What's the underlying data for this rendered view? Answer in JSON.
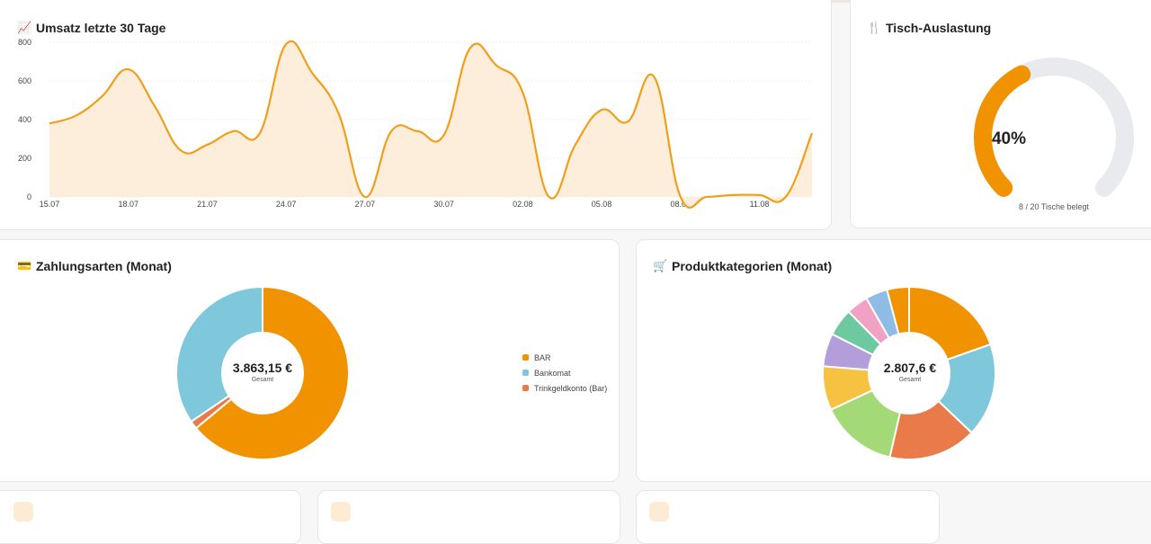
{
  "revenue_card": {
    "title": "Umsatz letzte 30 Tage",
    "icon": "chart-line-icon"
  },
  "occupancy_card": {
    "title": "Tisch-Auslastung",
    "icon": "fork-knife-icon",
    "percent_label": "40%",
    "percent": 0.4,
    "sub_label": "8 / 20 Tische belegt",
    "color_fill": "#f19200",
    "color_track": "#e8eaed"
  },
  "payments_card": {
    "title": "Zahlungsarten (Monat)",
    "icon": "credit-card-icon",
    "center_value": "3.863,15 €",
    "center_sub": "Gesamt",
    "legend": [
      {
        "label": "BAR",
        "color": "#f19200"
      },
      {
        "label": "Bankomat",
        "color": "#7fc8dc"
      },
      {
        "label": "Trinkgeldkonto (Bar)",
        "color": "#e97b4a"
      }
    ]
  },
  "categories_card": {
    "title": "Produktkategorien (Monat)",
    "icon": "shopping-cart-icon",
    "center_value": "2.807,6 €",
    "center_sub": "Gesamt"
  },
  "chart_data": [
    {
      "type": "area",
      "title": "Umsatz letzte 30 Tage",
      "x_tick_labels": [
        "15.07",
        "18.07",
        "21.07",
        "24.07",
        "27.07",
        "30.07",
        "02.08",
        "05.08",
        "08.08",
        "11.08"
      ],
      "y_tick_labels": [
        "0",
        "200",
        "400",
        "600",
        "800"
      ],
      "ylim": [
        0,
        800
      ],
      "grid": true,
      "values": [
        380,
        420,
        520,
        660,
        470,
        240,
        270,
        340,
        330,
        790,
        640,
        430,
        0,
        340,
        340,
        320,
        770,
        680,
        540,
        0,
        270,
        450,
        390,
        620,
        0,
        0,
        10,
        10,
        0,
        330
      ],
      "color": "#f19e1a",
      "fill": "#fdeedb"
    },
    {
      "type": "pie",
      "title": "Zahlungsarten (Monat)",
      "labels": [
        "Bankomat",
        "BAR",
        "Trinkgeldkonto (Bar)"
      ],
      "values": [
        0.345,
        0.64,
        0.015
      ],
      "colors": [
        "#7fc8dc",
        "#f19200",
        "#e97b4a"
      ],
      "legend": "right"
    },
    {
      "type": "pie",
      "values": [
        0.19,
        0.17,
        0.16,
        0.14,
        0.08,
        0.06,
        0.05,
        0.04,
        0.04,
        0.04
      ],
      "colors": [
        "#f19200",
        "#7fc8dc",
        "#e97b4a",
        "#a4d977",
        "#f5c242",
        "#b39ddb",
        "#6cc9a0",
        "#f0a1c4",
        "#8fbce6",
        "#f19200"
      ]
    }
  ]
}
